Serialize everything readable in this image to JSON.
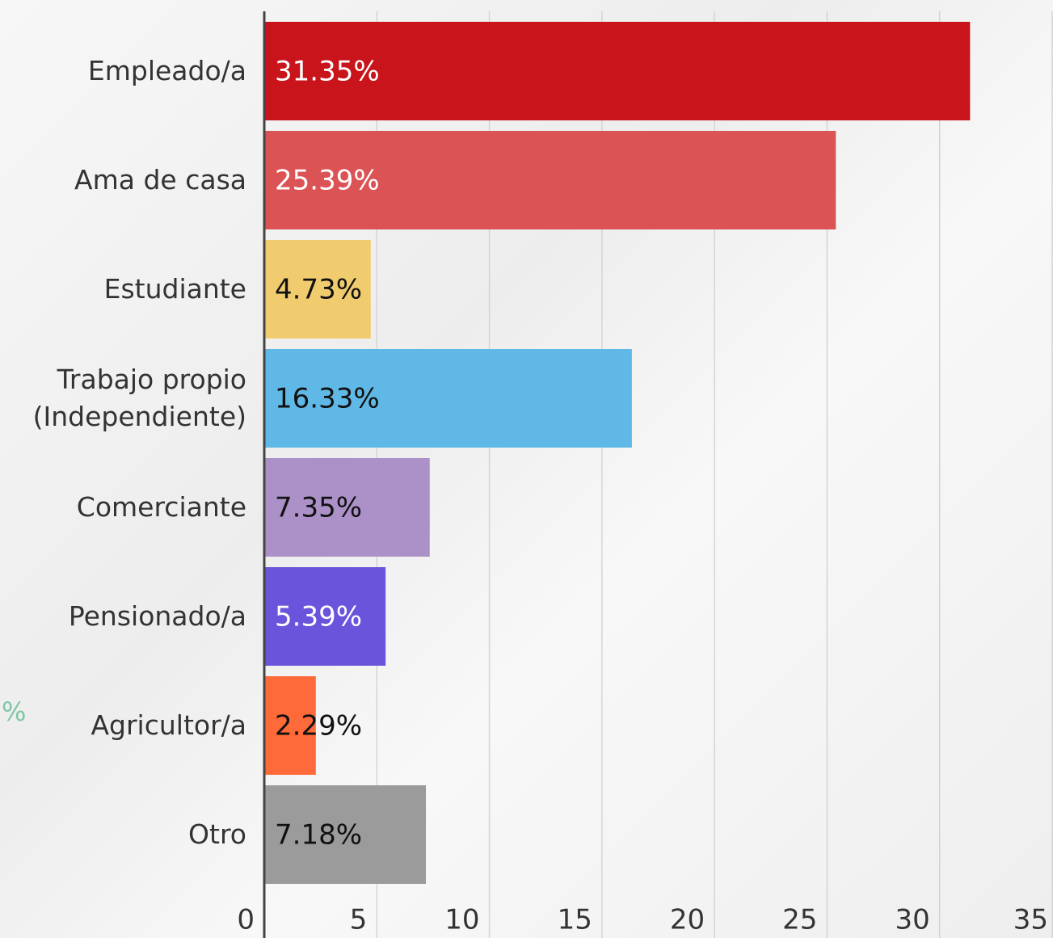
{
  "chart_data": {
    "type": "bar",
    "orientation": "horizontal",
    "annotation": "%",
    "categories": [
      "Empleado/a",
      "Ama de casa",
      "Estudiante",
      "Trabajo propio (Independiente)",
      "Comerciante",
      "Pensionado/a",
      "Agricultor/a",
      "Otro"
    ],
    "values": [
      31.35,
      25.39,
      4.73,
      16.33,
      7.35,
      5.39,
      2.29,
      7.18
    ],
    "value_labels": [
      "31.35%",
      "25.39%",
      "4.73%",
      "16.33%",
      "7.35%",
      "5.39%",
      "2.29%",
      "7.18%"
    ],
    "colors": [
      "#c8141a",
      "#dc5356",
      "#f0cc6e",
      "#5fb8e6",
      "#ac91c8",
      "#6b54dc",
      "#ff6a3a",
      "#9b9b9b"
    ],
    "label_colors": [
      "#ffffff",
      "#ffffff",
      "#111111",
      "#111111",
      "#111111",
      "#ffffff",
      "#111111",
      "#111111"
    ],
    "xlim": [
      0,
      35
    ],
    "xticks": [
      0,
      5,
      10,
      15,
      20,
      25,
      30,
      35
    ],
    "grid": true
  }
}
